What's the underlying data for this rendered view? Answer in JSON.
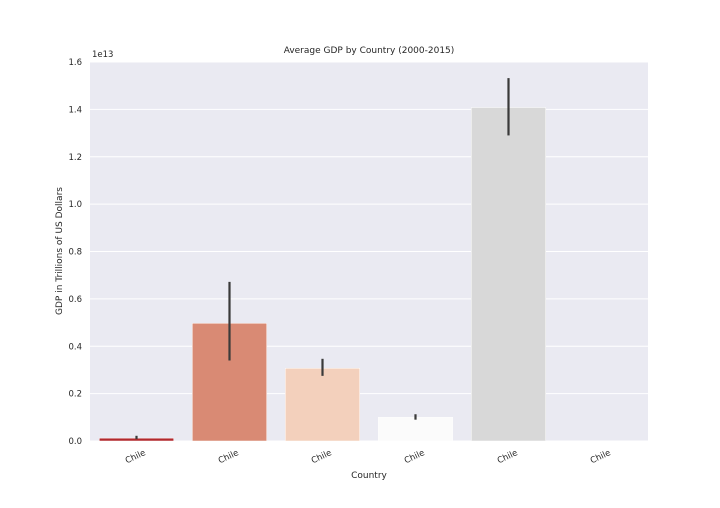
{
  "chart_data": {
    "type": "bar",
    "title": "Average GDP by Country (2000-2015)",
    "xlabel": "Country",
    "ylabel": "GDP in Trillions of US Dollars",
    "offset_label": "1e13",
    "categories": [
      "Chile",
      "Chile",
      "Chile",
      "Chile",
      "Chile",
      "Chile"
    ],
    "values": [
      0.012,
      0.497,
      0.307,
      0.1,
      1.408,
      0.0
    ],
    "error_low": [
      0.008,
      0.34,
      0.275,
      0.09,
      1.29,
      0.0
    ],
    "error_high": [
      0.022,
      0.672,
      0.347,
      0.113,
      1.532,
      0.0
    ],
    "bar_colors": [
      "#b2292e",
      "#d98a74",
      "#f3d0bc",
      "#fbfbfb",
      "#d8d8d8",
      "#e8e8e8"
    ],
    "ylim": [
      0,
      1.6
    ],
    "yticks": [
      0.0,
      0.2,
      0.4,
      0.6,
      0.8,
      1.0,
      1.2,
      1.4,
      1.6
    ],
    "ytick_labels": [
      "0.0",
      "0.2",
      "0.4",
      "0.6",
      "0.8",
      "1.0",
      "1.2",
      "1.4",
      "1.6"
    ],
    "grid": true,
    "background_color": "#eaeaf2",
    "grid_color": "#ffffff",
    "errorbar_color": "#3a3a3a"
  }
}
